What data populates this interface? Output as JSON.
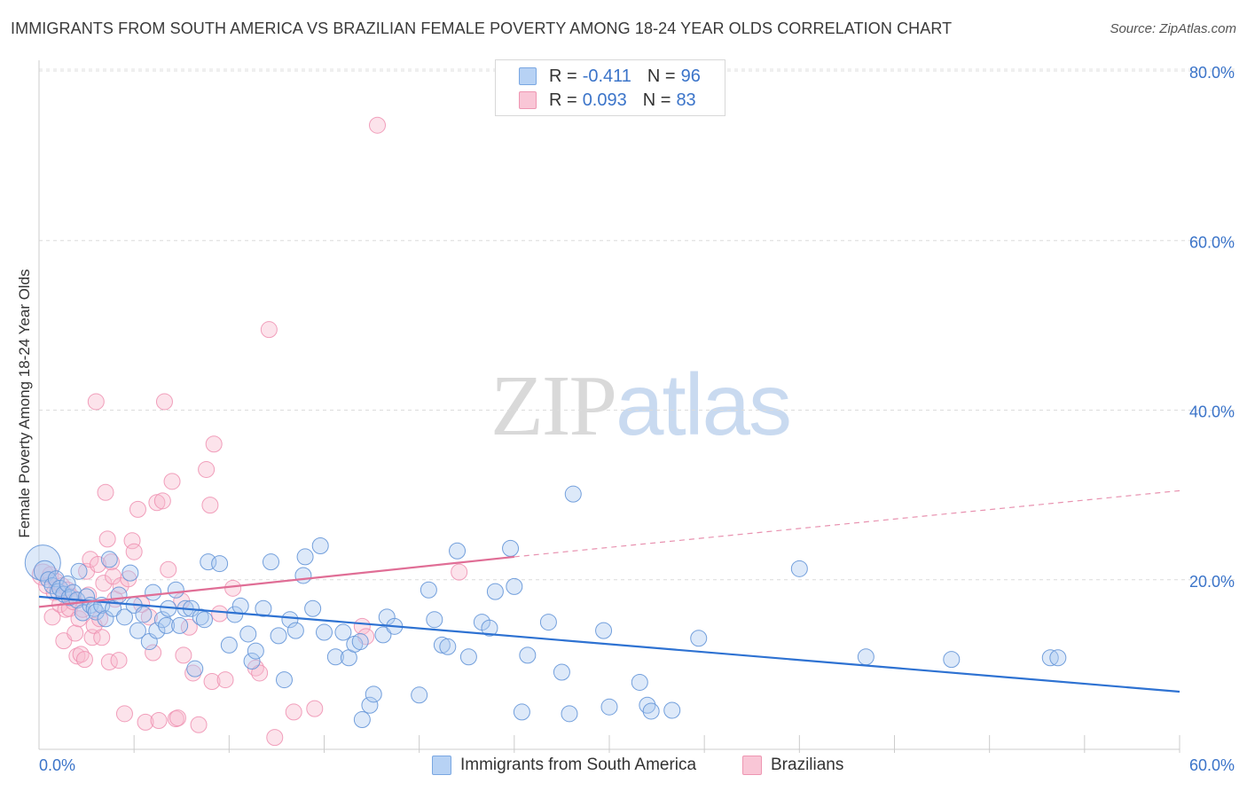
{
  "title": "IMMIGRANTS FROM SOUTH AMERICA VS BRAZILIAN FEMALE POVERTY AMONG 18-24 YEAR OLDS CORRELATION CHART",
  "source": "Source: ZipAtlas.com",
  "watermark": {
    "zip": "ZIP",
    "atlas": "atlas"
  },
  "legend": {
    "rows": [
      {
        "r_label": "R =",
        "r_value": "-0.411",
        "n_label": "N =",
        "n_value": "96",
        "color": "#a9c8f0"
      },
      {
        "r_label": "R =",
        "r_value": "0.093",
        "n_label": "N =",
        "n_value": "83",
        "color": "#f6b8cb"
      }
    ]
  },
  "bottom_legend": {
    "series1": "Immigrants from South America",
    "series2": "Brazilians"
  },
  "chart_data": {
    "type": "scatter",
    "ylabel": "Female Poverty Among 18-24 Year Olds",
    "xlabel": "",
    "xlim": [
      0,
      60
    ],
    "ylim": [
      0,
      80
    ],
    "x_tick_labels": [
      "0.0%",
      "60.0%"
    ],
    "y_ticks": [
      20,
      40,
      60,
      80
    ],
    "y_tick_labels": [
      "20.0%",
      "40.0%",
      "60.0%",
      "80.0%"
    ],
    "grid": true,
    "legend_position": "top-center",
    "series": [
      {
        "name": "Immigrants from South America",
        "color": "#6fa1e0",
        "trend": {
          "x": [
            0,
            60
          ],
          "y": [
            18.0,
            6.8
          ],
          "style": "solid",
          "color": "#2e72d2"
        },
        "points": [
          [
            0.2,
            22.0,
            20
          ],
          [
            0.3,
            21.0,
            12
          ],
          [
            0.5,
            20.0,
            9
          ],
          [
            0.7,
            19.3,
            9
          ],
          [
            0.9,
            20.1,
            9
          ],
          [
            1.0,
            18.6,
            9
          ],
          [
            1.1,
            19.0,
            9
          ],
          [
            1.3,
            18.3,
            9
          ],
          [
            1.5,
            19.5,
            9
          ],
          [
            1.6,
            17.9,
            9
          ],
          [
            1.8,
            18.5,
            9
          ],
          [
            2.0,
            17.6,
            9
          ],
          [
            2.1,
            21.0,
            9
          ],
          [
            2.3,
            16.1,
            9
          ],
          [
            2.5,
            18.0,
            9
          ],
          [
            2.7,
            17.0,
            9
          ],
          [
            2.9,
            16.6,
            9
          ],
          [
            3.0,
            16.2,
            9
          ],
          [
            3.3,
            17.0,
            9
          ],
          [
            3.5,
            15.4,
            9
          ],
          [
            3.7,
            22.4,
            9
          ],
          [
            3.9,
            16.6,
            9
          ],
          [
            4.2,
            18.2,
            9
          ],
          [
            4.5,
            15.6,
            9
          ],
          [
            4.8,
            20.8,
            9
          ],
          [
            5.0,
            17.0,
            9
          ],
          [
            5.2,
            14.0,
            9
          ],
          [
            5.5,
            15.9,
            9
          ],
          [
            5.8,
            12.7,
            9
          ],
          [
            6.0,
            18.5,
            9
          ],
          [
            6.2,
            14.0,
            9
          ],
          [
            6.5,
            15.3,
            9
          ],
          [
            6.7,
            14.6,
            9
          ],
          [
            6.8,
            16.6,
            9
          ],
          [
            7.2,
            18.8,
            9
          ],
          [
            7.4,
            14.6,
            9
          ],
          [
            7.7,
            16.6,
            9
          ],
          [
            8.0,
            16.6,
            9
          ],
          [
            8.2,
            9.5,
            9
          ],
          [
            8.5,
            15.6,
            9
          ],
          [
            8.7,
            15.3,
            9
          ],
          [
            8.9,
            22.1,
            9
          ],
          [
            9.5,
            21.9,
            9
          ],
          [
            10.0,
            12.3,
            9
          ],
          [
            10.3,
            15.9,
            9
          ],
          [
            10.6,
            16.9,
            9
          ],
          [
            11.0,
            13.6,
            9
          ],
          [
            11.2,
            10.4,
            9
          ],
          [
            11.4,
            11.6,
            9
          ],
          [
            11.8,
            16.6,
            9
          ],
          [
            12.2,
            22.1,
            9
          ],
          [
            12.6,
            13.4,
            9
          ],
          [
            12.9,
            8.2,
            9
          ],
          [
            13.2,
            15.3,
            9
          ],
          [
            13.5,
            14.0,
            9
          ],
          [
            13.9,
            20.5,
            9
          ],
          [
            14.0,
            22.7,
            9
          ],
          [
            14.4,
            16.6,
            9
          ],
          [
            14.8,
            24.0,
            9
          ],
          [
            15.0,
            13.8,
            9
          ],
          [
            15.6,
            10.9,
            9
          ],
          [
            16.0,
            13.8,
            9
          ],
          [
            16.3,
            10.8,
            9
          ],
          [
            16.6,
            12.4,
            9
          ],
          [
            16.9,
            12.7,
            9
          ],
          [
            17.0,
            3.5,
            9
          ],
          [
            17.4,
            5.2,
            9
          ],
          [
            17.6,
            6.5,
            9
          ],
          [
            18.1,
            13.5,
            9
          ],
          [
            18.3,
            15.6,
            9
          ],
          [
            18.7,
            14.5,
            9
          ],
          [
            20.0,
            6.4,
            9
          ],
          [
            20.5,
            18.8,
            9
          ],
          [
            20.8,
            15.3,
            9
          ],
          [
            21.2,
            12.3,
            9
          ],
          [
            21.5,
            12.1,
            9
          ],
          [
            22.0,
            23.4,
            9
          ],
          [
            22.6,
            10.9,
            9
          ],
          [
            23.3,
            15.0,
            9
          ],
          [
            23.7,
            14.3,
            9
          ],
          [
            24.0,
            18.6,
            9
          ],
          [
            24.8,
            23.7,
            9
          ],
          [
            25.0,
            19.2,
            9
          ],
          [
            25.4,
            4.4,
            9
          ],
          [
            25.7,
            11.1,
            9
          ],
          [
            26.8,
            15.0,
            9
          ],
          [
            27.5,
            9.1,
            9
          ],
          [
            27.9,
            4.2,
            9
          ],
          [
            28.1,
            30.1,
            9
          ],
          [
            29.7,
            14.0,
            9
          ],
          [
            30.0,
            5.0,
            9
          ],
          [
            31.6,
            7.9,
            9
          ],
          [
            32.0,
            5.2,
            9
          ],
          [
            32.2,
            4.5,
            9
          ],
          [
            33.3,
            4.6,
            9
          ],
          [
            34.7,
            13.1,
            9
          ],
          [
            40.0,
            21.3,
            9
          ],
          [
            43.5,
            10.9,
            9
          ],
          [
            48.0,
            10.6,
            9
          ],
          [
            53.2,
            10.8,
            9
          ],
          [
            53.6,
            10.8,
            9
          ]
        ]
      },
      {
        "name": "Brazilians",
        "color": "#f09ab5",
        "trend": {
          "x": [
            0,
            25
          ],
          "y": [
            16.8,
            22.7
          ],
          "x_dashed": [
            25,
            60
          ],
          "y_dashed": [
            22.7,
            30.5
          ],
          "style": "solid-then-dashed",
          "color": "#e06e96"
        },
        "points": [
          [
            0.2,
            20.6,
            12
          ],
          [
            0.4,
            19.3,
            9
          ],
          [
            0.6,
            20.6,
            9
          ],
          [
            0.7,
            15.6,
            9
          ],
          [
            0.8,
            18.5,
            9
          ],
          [
            0.9,
            19.8,
            9
          ],
          [
            1.1,
            17.1,
            9
          ],
          [
            1.2,
            19.3,
            9
          ],
          [
            1.3,
            12.8,
            9
          ],
          [
            1.4,
            16.5,
            9
          ],
          [
            1.5,
            18.8,
            9
          ],
          [
            1.6,
            16.6,
            9
          ],
          [
            1.7,
            18.0,
            9
          ],
          [
            1.8,
            17.4,
            9
          ],
          [
            1.9,
            13.7,
            9
          ],
          [
            2.0,
            11.0,
            9
          ],
          [
            2.1,
            15.4,
            9
          ],
          [
            2.2,
            11.2,
            9
          ],
          [
            2.3,
            16.5,
            9
          ],
          [
            2.4,
            10.6,
            9
          ],
          [
            2.5,
            21.0,
            9
          ],
          [
            2.6,
            18.2,
            9
          ],
          [
            2.7,
            22.4,
            9
          ],
          [
            2.8,
            13.2,
            9
          ],
          [
            2.9,
            14.6,
            9
          ],
          [
            3.0,
            41.0,
            9
          ],
          [
            3.1,
            21.8,
            9
          ],
          [
            3.2,
            15.4,
            9
          ],
          [
            3.3,
            13.2,
            9
          ],
          [
            3.4,
            19.6,
            9
          ],
          [
            3.5,
            30.3,
            9
          ],
          [
            3.6,
            24.8,
            9
          ],
          [
            3.7,
            10.3,
            9
          ],
          [
            3.8,
            22.1,
            9
          ],
          [
            3.9,
            20.4,
            9
          ],
          [
            4.0,
            17.7,
            9
          ],
          [
            4.2,
            10.5,
            9
          ],
          [
            4.3,
            19.3,
            9
          ],
          [
            4.5,
            4.2,
            9
          ],
          [
            4.7,
            20.1,
            9
          ],
          [
            4.9,
            24.6,
            9
          ],
          [
            5.0,
            23.3,
            9
          ],
          [
            5.2,
            28.3,
            9
          ],
          [
            5.4,
            17.1,
            9
          ],
          [
            5.6,
            3.2,
            9
          ],
          [
            5.8,
            15.6,
            9
          ],
          [
            6.0,
            11.4,
            9
          ],
          [
            6.2,
            29.1,
            9
          ],
          [
            6.3,
            3.4,
            9
          ],
          [
            6.5,
            29.3,
            9
          ],
          [
            6.6,
            41.0,
            9
          ],
          [
            6.8,
            21.2,
            9
          ],
          [
            7.0,
            31.6,
            9
          ],
          [
            7.2,
            3.6,
            9
          ],
          [
            7.3,
            3.7,
            9
          ],
          [
            7.5,
            17.5,
            9
          ],
          [
            7.6,
            11.1,
            9
          ],
          [
            7.9,
            14.4,
            9
          ],
          [
            8.1,
            9.0,
            9
          ],
          [
            8.4,
            2.9,
            9
          ],
          [
            8.8,
            33.0,
            9
          ],
          [
            9.0,
            28.8,
            9
          ],
          [
            9.1,
            8.0,
            9
          ],
          [
            9.2,
            36.0,
            9
          ],
          [
            9.5,
            16.0,
            9
          ],
          [
            9.8,
            8.2,
            9
          ],
          [
            10.2,
            19.0,
            9
          ],
          [
            11.4,
            9.6,
            9
          ],
          [
            11.6,
            9.0,
            9
          ],
          [
            12.1,
            49.5,
            9
          ],
          [
            12.4,
            1.4,
            9
          ],
          [
            13.4,
            4.4,
            9
          ],
          [
            14.5,
            4.8,
            9
          ],
          [
            17.0,
            14.5,
            9
          ],
          [
            17.2,
            13.3,
            9
          ],
          [
            17.8,
            73.6,
            9
          ],
          [
            22.1,
            20.9,
            9
          ]
        ]
      }
    ]
  }
}
